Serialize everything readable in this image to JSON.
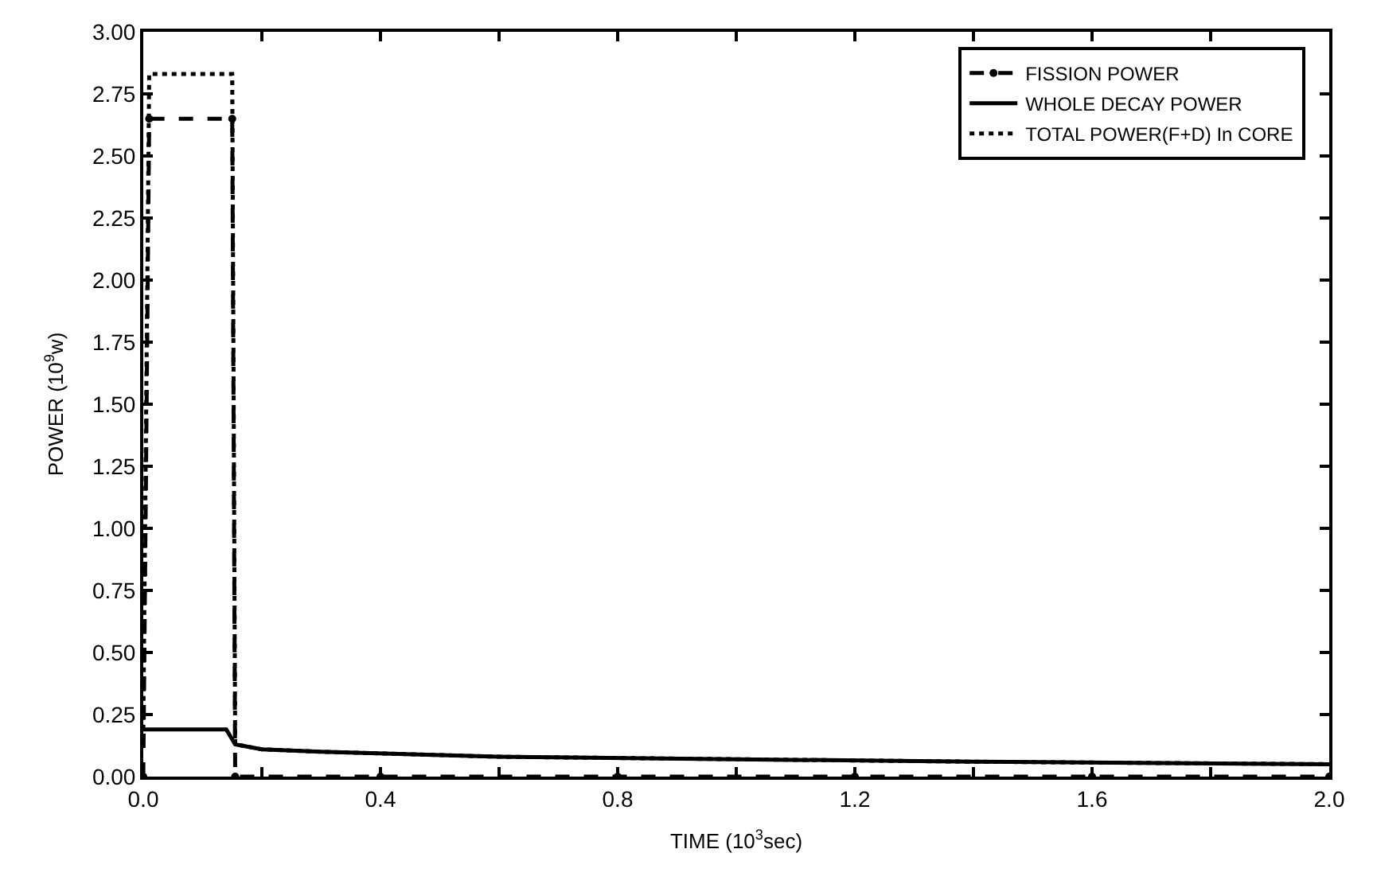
{
  "chart_data": {
    "type": "line",
    "xlabel": "TIME (10$^{3}$sec)",
    "ylabel": "POWER (10$^{9}$w)",
    "xlim": [
      0,
      2.0
    ],
    "ylim": [
      0,
      3.0
    ],
    "xticks": [
      {
        "value": 0,
        "label": "0.0"
      },
      {
        "value": 0.2,
        "label": null
      },
      {
        "value": 0.4,
        "label": "0.4"
      },
      {
        "value": 0.6,
        "label": null
      },
      {
        "value": 0.8,
        "label": "0.8"
      },
      {
        "value": 1.0,
        "label": null
      },
      {
        "value": 1.2,
        "label": "1.2"
      },
      {
        "value": 1.4,
        "label": null
      },
      {
        "value": 1.6,
        "label": "1.6"
      },
      {
        "value": 1.8,
        "label": null
      },
      {
        "value": 2.0,
        "label": "2.0"
      }
    ],
    "yticks": [
      {
        "value": 0,
        "label": "0.00"
      },
      {
        "value": 0.25,
        "label": "0.25"
      },
      {
        "value": 0.5,
        "label": "0.50"
      },
      {
        "value": 0.75,
        "label": "0.75"
      },
      {
        "value": 1.0,
        "label": "1.00"
      },
      {
        "value": 1.25,
        "label": "1.25"
      },
      {
        "value": 1.5,
        "label": "1.50"
      },
      {
        "value": 1.75,
        "label": "1.75"
      },
      {
        "value": 2.0,
        "label": "2.00"
      },
      {
        "value": 2.25,
        "label": "2.25"
      },
      {
        "value": 2.5,
        "label": "2.50"
      },
      {
        "value": 2.75,
        "label": "2.75"
      },
      {
        "value": 3.0,
        "label": "3.00"
      }
    ],
    "legend": "top right",
    "series": [
      {
        "name": "FISSION POWER",
        "color": "#000000",
        "line_style": "dashed",
        "marker": "circle",
        "x": [
          0,
          0.01,
          0.15,
          0.155,
          0.4,
          0.8,
          1.2,
          1.6,
          2.0
        ],
        "values": [
          0,
          2.65,
          2.65,
          0,
          0,
          0,
          0,
          0,
          0
        ]
      },
      {
        "name": "WHOLE DECAY POWER",
        "color": "#000000",
        "line_style": "solid",
        "x": [
          0,
          0.005,
          0.14,
          0.155,
          0.2,
          0.3,
          0.6,
          1.0,
          1.4,
          2.0
        ],
        "values": [
          0.19,
          0.19,
          0.19,
          0.13,
          0.11,
          0.1,
          0.08,
          0.07,
          0.06,
          0.05
        ]
      },
      {
        "name": "TOTAL POWER(F+D) In CORE",
        "color": "#000000",
        "line_style": "dotted",
        "x": [
          0,
          0.01,
          0.15,
          0.155,
          0.2,
          0.3,
          0.6,
          1.0,
          1.4,
          2.0
        ],
        "values": [
          0.19,
          2.83,
          2.83,
          0.13,
          0.11,
          0.1,
          0.08,
          0.07,
          0.06,
          0.05
        ]
      }
    ]
  }
}
